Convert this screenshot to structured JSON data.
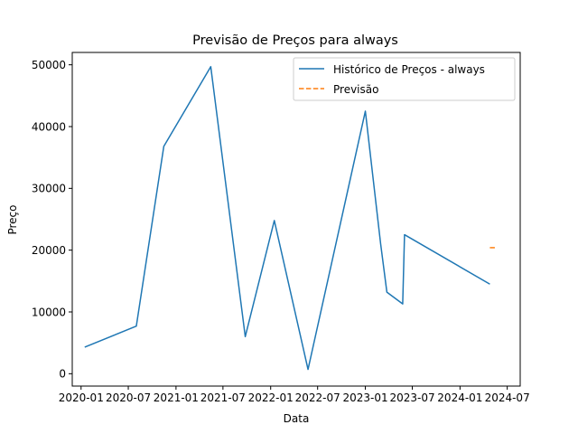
{
  "chart_data": {
    "type": "line",
    "title": "Previsão de Preços para always",
    "xlabel": "Data",
    "ylabel": "Preço",
    "xlim": [
      "2019-11-28",
      "2024-08-20"
    ],
    "ylim": [
      -2000,
      52000
    ],
    "x_ticks": [
      "2020-01",
      "2020-07",
      "2021-01",
      "2021-07",
      "2022-01",
      "2022-07",
      "2023-01",
      "2023-07",
      "2024-01",
      "2024-07"
    ],
    "y_ticks": [
      0,
      10000,
      20000,
      30000,
      40000,
      50000
    ],
    "legend_position": "upper-right",
    "series": [
      {
        "name": "Histórico de Preços - always",
        "color": "#1f77b4",
        "style": "solid",
        "points": [
          {
            "x": "2020-01-15",
            "y": 4300
          },
          {
            "x": "2020-08-01",
            "y": 7700
          },
          {
            "x": "2020-11-15",
            "y": 36800
          },
          {
            "x": "2021-05-15",
            "y": 49700
          },
          {
            "x": "2021-09-25",
            "y": 6000
          },
          {
            "x": "2022-01-15",
            "y": 24800
          },
          {
            "x": "2022-05-25",
            "y": 700
          },
          {
            "x": "2023-01-01",
            "y": 42500
          },
          {
            "x": "2023-03-01",
            "y": 21000
          },
          {
            "x": "2023-03-25",
            "y": 13200
          },
          {
            "x": "2023-05-25",
            "y": 11300
          },
          {
            "x": "2023-06-01",
            "y": 22500
          },
          {
            "x": "2024-04-25",
            "y": 14500
          }
        ]
      },
      {
        "name": "Previsão",
        "color": "#ff7f0e",
        "style": "dashed",
        "points": [
          {
            "x": "2024-04-25",
            "y": 20400
          },
          {
            "x": "2024-05-20",
            "y": 20400
          }
        ]
      }
    ]
  }
}
